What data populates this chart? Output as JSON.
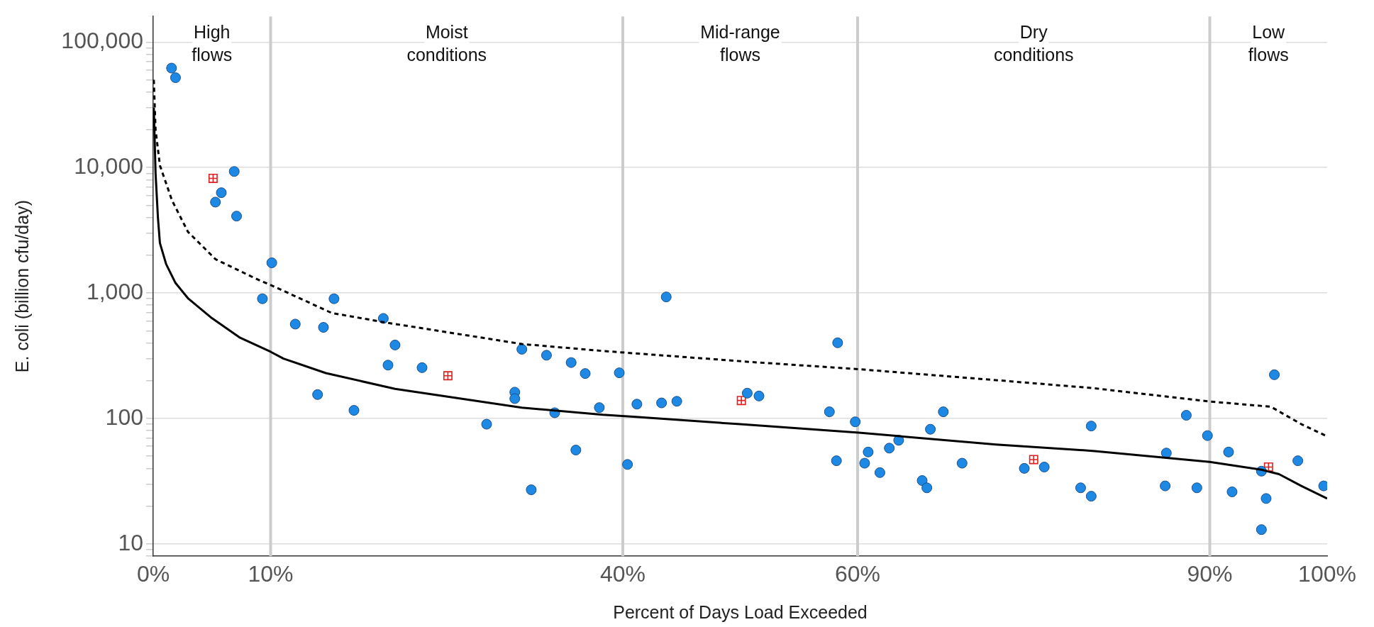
{
  "chart_data": {
    "type": "scatter",
    "xlabel": "Percent of Days Load Exceeded",
    "ylabel": "E. coli (billion cfu/day)",
    "log": "y",
    "grid": "y",
    "legend": false,
    "xlim": [
      0,
      100
    ],
    "xticks": [
      {
        "value": 0,
        "label": "0%"
      },
      {
        "value": 10,
        "label": "10%"
      },
      {
        "value": 40,
        "label": "40%"
      },
      {
        "value": 60,
        "label": "60%"
      },
      {
        "value": 90,
        "label": "90%"
      },
      {
        "value": 100,
        "label": "100%"
      }
    ],
    "ylim": [
      8,
      160000
    ],
    "yticks": [
      {
        "value": 8,
        "label": null
      },
      {
        "value": 9,
        "label": null
      },
      10,
      {
        "value": 20,
        "label": null
      },
      {
        "value": 30,
        "label": null
      },
      {
        "value": 40,
        "label": null
      },
      {
        "value": 50,
        "label": null
      },
      {
        "value": 60,
        "label": null
      },
      {
        "value": 70,
        "label": null
      },
      {
        "value": 80,
        "label": null
      },
      {
        "value": 90,
        "label": null
      },
      100,
      {
        "value": 200,
        "label": null
      },
      {
        "value": 300,
        "label": null
      },
      {
        "value": 400,
        "label": null
      },
      {
        "value": 500,
        "label": null
      },
      {
        "value": 600,
        "label": null
      },
      {
        "value": 700,
        "label": null
      },
      {
        "value": 800,
        "label": null
      },
      {
        "value": 900,
        "label": null
      },
      {
        "value": 1000,
        "label": "1,000"
      },
      {
        "value": 2000,
        "label": null
      },
      {
        "value": 3000,
        "label": null
      },
      {
        "value": 4000,
        "label": null
      },
      {
        "value": 5000,
        "label": null
      },
      {
        "value": 6000,
        "label": null
      },
      {
        "value": 7000,
        "label": null
      },
      {
        "value": 8000,
        "label": null
      },
      {
        "value": 9000,
        "label": null
      },
      {
        "value": 10000,
        "label": "10,000"
      },
      {
        "value": 20000,
        "label": null
      },
      {
        "value": 30000,
        "label": null
      },
      {
        "value": 40000,
        "label": null
      },
      {
        "value": 50000,
        "label": null
      },
      {
        "value": 60000,
        "label": null
      },
      {
        "value": 70000,
        "label": null
      },
      {
        "value": 80000,
        "label": null
      },
      {
        "value": 90000,
        "label": null
      },
      {
        "value": 100000,
        "label": "100,000"
      }
    ],
    "ref_lines": [
      {
        "axis": "x",
        "value": 10,
        "color": "#cccccc"
      },
      {
        "axis": "x",
        "value": 40,
        "color": "#cccccc"
      },
      {
        "axis": "x",
        "value": 60,
        "color": "#cccccc"
      },
      {
        "axis": "x",
        "value": 90,
        "color": "#cccccc"
      }
    ],
    "annotations": [
      "High flows",
      "Moist conditions",
      "Mid-range flows",
      "Dry conditions",
      "Low flows"
    ],
    "series": [
      {
        "type": "line",
        "color": "#000000",
        "marker": "none",
        "line_style": "dashed",
        "x": [
          0.05,
          0.2,
          0.57,
          1.6,
          2.96,
          5.3,
          8.75,
          10.35,
          15.2,
          19.8,
          31.4,
          38.3,
          41.1,
          50.9,
          60.1,
          71.8,
          80.2,
          89.8,
          95.2,
          97.8,
          100
        ],
        "values": [
          50000,
          20000,
          10400,
          5470,
          3070,
          1860,
          1300,
          1120,
          693,
          582,
          392,
          345,
          330,
          282,
          247,
          202,
          174,
          137,
          124,
          90,
          72
        ]
      },
      {
        "type": "line",
        "color": "#000000",
        "marker": "none",
        "line_style": "solid",
        "x": [
          0.05,
          0.2,
          0.4,
          0.57,
          1.1,
          1.9,
          3,
          5,
          7.4,
          10,
          11.1,
          14.7,
          20.6,
          26,
          31.4,
          38.3,
          41.1,
          50,
          60.1,
          71.8,
          80.2,
          90,
          94.4,
          95.9,
          97.8,
          100
        ],
        "values": [
          30000,
          9000,
          4000,
          2500,
          1700,
          1200,
          900,
          630,
          440,
          340,
          300,
          230,
          172,
          145,
          122,
          107,
          103,
          90,
          77,
          62,
          55,
          45,
          39,
          36,
          29,
          23
        ]
      },
      {
        "type": "scatter",
        "color": "#1e88e5",
        "marker": "circle",
        "x": [
          1.56,
          1.9,
          6.9,
          5.8,
          5.3,
          7.1,
          10.1,
          9.3,
          15.4,
          12.1,
          14.5,
          19.6,
          20.6,
          20.0,
          22.9,
          14.0,
          17.1,
          28.4,
          30.8,
          30.8,
          31.4,
          33.5,
          35.6,
          36.8,
          32.2,
          34.2,
          36.0,
          38.0,
          39.7,
          40.4,
          41.2,
          43.7,
          43.3,
          44.6,
          50.6,
          51.6,
          58.3,
          57.6,
          58.2,
          59.8,
          60.9,
          60.6,
          61.9,
          62.7,
          63.5,
          65.5,
          65.9,
          66.2,
          67.3,
          68.9,
          74.2,
          75.9,
          79.0,
          79.9,
          79.9,
          86.3,
          86.2,
          88.0,
          88.9,
          89.8,
          91.6,
          91.9,
          94.4,
          94.8,
          94.4,
          95.5,
          97.5,
          99.7
        ],
        "values": [
          62000,
          52000,
          9300,
          6300,
          5300,
          4100,
          1740,
          900,
          900,
          565,
          532,
          627,
          385,
          266,
          254,
          155,
          116,
          90,
          162,
          144,
          356,
          319,
          279,
          228,
          27,
          111,
          56,
          122,
          231,
          43,
          130,
          930,
          133,
          137,
          159,
          151,
          401,
          113,
          46,
          94,
          54,
          44,
          37,
          58,
          67,
          32,
          28,
          82,
          113,
          44,
          40,
          41,
          28,
          87,
          24,
          53,
          29,
          106,
          28,
          73,
          54,
          26,
          38,
          23,
          13,
          223,
          46,
          29
        ]
      },
      {
        "type": "scatter",
        "color": "#e02020",
        "marker": "square",
        "x": [
          5.1,
          25.1,
          50.1,
          75.0,
          95.0
        ],
        "values": [
          8200,
          219,
          139,
          47,
          41
        ]
      }
    ]
  }
}
